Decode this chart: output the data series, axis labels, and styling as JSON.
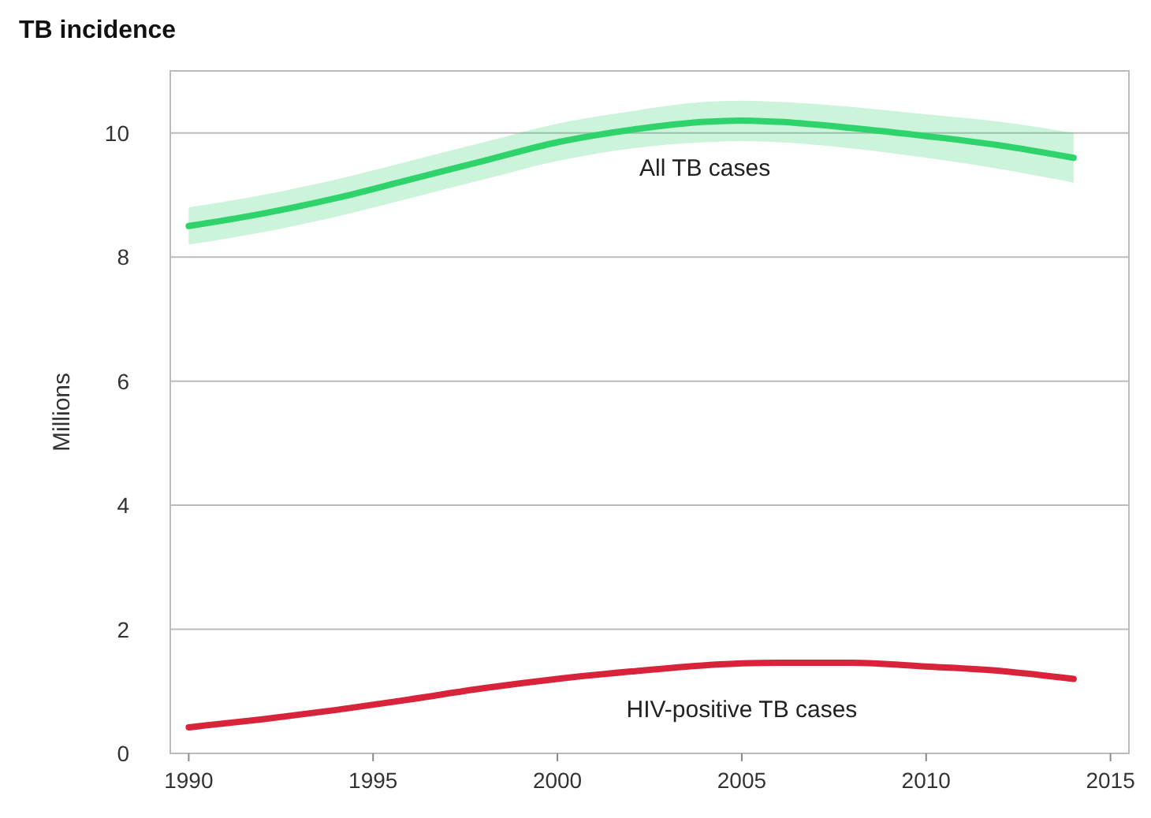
{
  "chart_data": {
    "type": "line",
    "title": "TB incidence",
    "ylabel": "Millions",
    "x": [
      1990,
      1992,
      1994,
      1996,
      1998,
      2000,
      2002,
      2004,
      2005,
      2006,
      2008,
      2010,
      2012,
      2014
    ],
    "series": [
      {
        "name": "All TB cases",
        "color": "#2fd36b",
        "values": [
          8.5,
          8.7,
          8.95,
          9.25,
          9.55,
          9.85,
          10.05,
          10.18,
          10.2,
          10.18,
          10.08,
          9.95,
          9.8,
          9.6
        ],
        "lower": [
          8.2,
          8.4,
          8.65,
          8.95,
          9.25,
          9.55,
          9.75,
          9.85,
          9.87,
          9.85,
          9.75,
          9.6,
          9.42,
          9.2
        ],
        "upper": [
          8.8,
          9.0,
          9.25,
          9.55,
          9.85,
          10.15,
          10.35,
          10.5,
          10.52,
          10.5,
          10.42,
          10.3,
          10.18,
          10.0
        ]
      },
      {
        "name": "HIV-positive TB cases",
        "color": "#d9233a",
        "values": [
          0.42,
          0.55,
          0.7,
          0.87,
          1.05,
          1.2,
          1.32,
          1.42,
          1.45,
          1.46,
          1.46,
          1.4,
          1.33,
          1.2
        ]
      }
    ],
    "xlim": [
      1989.5,
      2015.5
    ],
    "ylim": [
      0,
      11
    ],
    "xticks": [
      1990,
      1995,
      2000,
      2005,
      2010,
      2015
    ],
    "yticks": [
      0,
      2,
      4,
      6,
      8,
      10
    ],
    "grid": "y",
    "marker": "none",
    "line_style": "solid"
  }
}
